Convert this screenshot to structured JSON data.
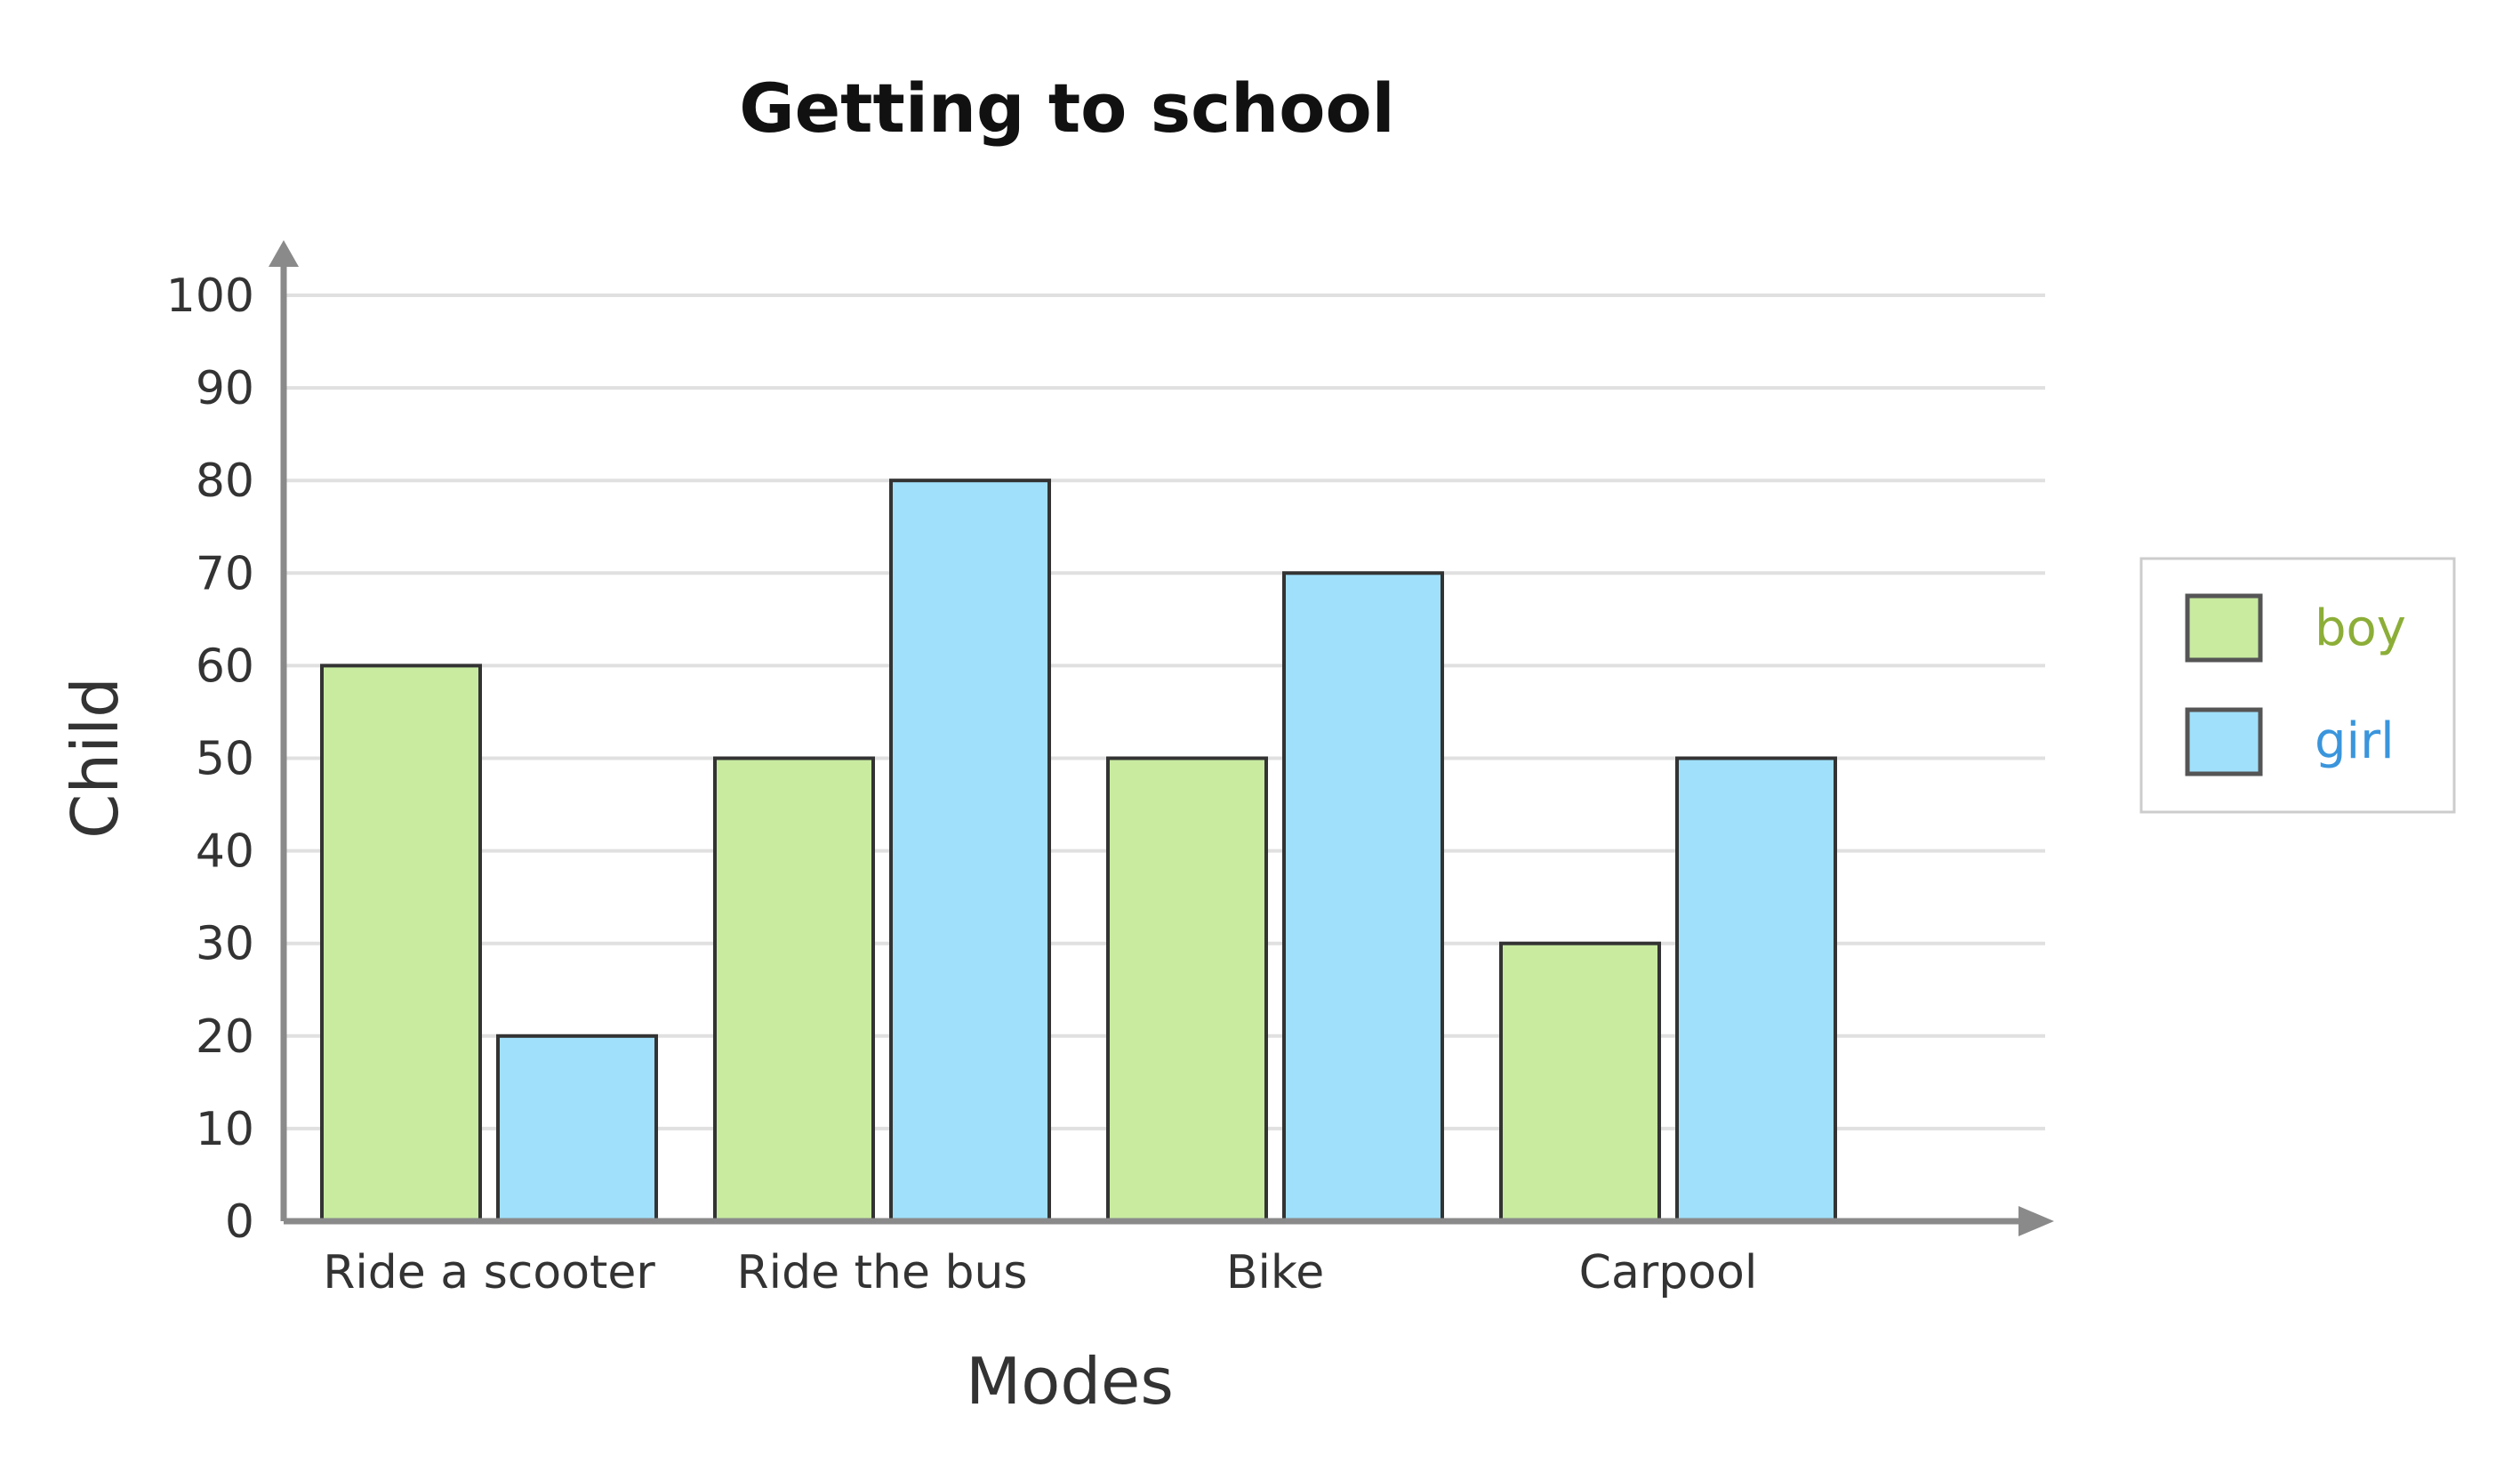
{
  "chart_data": {
    "type": "bar",
    "title": "Getting to school",
    "xlabel": "Modes",
    "ylabel": "Child",
    "categories": [
      "Ride a scooter",
      "Ride the bus",
      "Bike",
      "Carpool"
    ],
    "series": [
      {
        "name": "boy",
        "values": [
          60,
          50,
          50,
          30
        ],
        "color": "#c8eba0",
        "label_color": "#8cae38"
      },
      {
        "name": "girl",
        "values": [
          20,
          80,
          70,
          50
        ],
        "color": "#a0e0fa",
        "label_color": "#3a95dc"
      }
    ],
    "ylim": [
      0,
      100
    ],
    "yticks": [
      "0",
      "10",
      "20",
      "30",
      "40",
      "50",
      "60",
      "70",
      "80",
      "90",
      "100"
    ],
    "grid": true,
    "legend_position": "right"
  }
}
